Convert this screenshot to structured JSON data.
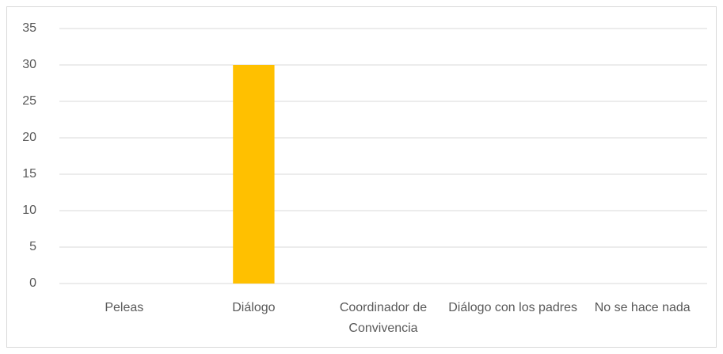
{
  "chart_data": {
    "type": "bar",
    "categories": [
      "Peleas",
      "Diálogo",
      "Coordinador de Convivencia",
      "Diálogo con los padres",
      "No se hace nada"
    ],
    "values": [
      0,
      30,
      0,
      0,
      0
    ],
    "color": "#ffc000",
    "ylim": [
      0,
      35
    ],
    "yticks": [
      0,
      5,
      10,
      15,
      20,
      25,
      30,
      35
    ],
    "grid": true
  }
}
